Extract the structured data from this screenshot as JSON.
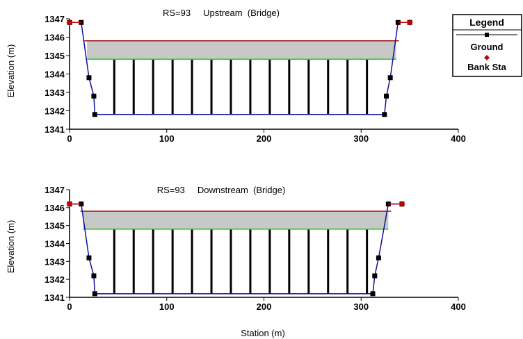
{
  "chart_data": [
    {
      "type": "line",
      "title": "RS=93     Upstream  (Bridge)",
      "ylabel": "Elevation (m)",
      "xlabel": "",
      "xlim": [
        0,
        400
      ],
      "ylim": [
        1341,
        1347
      ],
      "xticks": [
        "0",
        "100",
        "200",
        "300",
        "400"
      ],
      "yticks": [
        "1341",
        "1342",
        "1343",
        "1344",
        "1345",
        "1346",
        "1347"
      ],
      "series": [
        {
          "name": "Ground",
          "color": "#000000",
          "x": [
            0,
            12,
            20,
            25,
            26,
            324,
            326,
            330,
            338,
            350
          ],
          "y": [
            1346.8,
            1346.8,
            1343.8,
            1342.8,
            1341.8,
            1341.8,
            1342.8,
            1343.8,
            1346.8,
            1346.8
          ]
        }
      ],
      "bank_stations": {
        "name": "Bank Sta",
        "color": "#cc0000",
        "x": [
          0,
          350
        ],
        "y": [
          1346.8,
          1346.8
        ]
      },
      "deck": {
        "high_chord": 1345.8,
        "low_chord": 1344.8,
        "x_start": 18,
        "x_end": 336
      },
      "piers_x": [
        46,
        66,
        86,
        106,
        126,
        146,
        166,
        186,
        206,
        226,
        246,
        266,
        286,
        306
      ],
      "colors": {
        "deck_top": "#a01010",
        "low_chord": "#22cc22",
        "deck_fill": "#c8c8c8",
        "ground_line": "#1010a0",
        "pier": "#000000"
      }
    },
    {
      "type": "line",
      "title": "RS=93     Downstream  (Bridge)",
      "ylabel": "Elevation (m)",
      "xlabel": "Station (m)",
      "xlim": [
        0,
        400
      ],
      "ylim": [
        1341,
        1347
      ],
      "xticks": [
        "0",
        "100",
        "200",
        "300",
        "400"
      ],
      "yticks": [
        "1341",
        "1342",
        "1343",
        "1344",
        "1345",
        "1346",
        "1347"
      ],
      "series": [
        {
          "name": "Ground",
          "color": "#000000",
          "x": [
            0,
            12,
            20,
            25,
            26,
            312,
            314,
            318,
            328,
            342
          ],
          "y": [
            1346.2,
            1346.2,
            1343.2,
            1342.2,
            1341.2,
            1341.2,
            1342.2,
            1343.2,
            1346.2,
            1346.2
          ]
        }
      ],
      "bank_stations": {
        "name": "Bank Sta",
        "color": "#cc0000",
        "x": [
          0,
          342
        ],
        "y": [
          1346.2,
          1346.2
        ]
      },
      "deck": {
        "high_chord": 1345.8,
        "low_chord": 1344.8,
        "x_start": 14,
        "x_end": 328
      },
      "piers_x": [
        46,
        66,
        86,
        106,
        126,
        146,
        166,
        186,
        206,
        226,
        246,
        266,
        286,
        306
      ],
      "colors": {
        "deck_top": "#a01010",
        "low_chord": "#22cc22",
        "deck_fill": "#c8c8c8",
        "ground_line": "#1010a0",
        "pier": "#000000"
      }
    }
  ],
  "legend": {
    "title": "Legend",
    "items": [
      {
        "label": "Ground",
        "color": "#000000",
        "marker": "square"
      },
      {
        "label": "Bank Sta",
        "color": "#cc0000",
        "marker": "diamond"
      }
    ]
  }
}
